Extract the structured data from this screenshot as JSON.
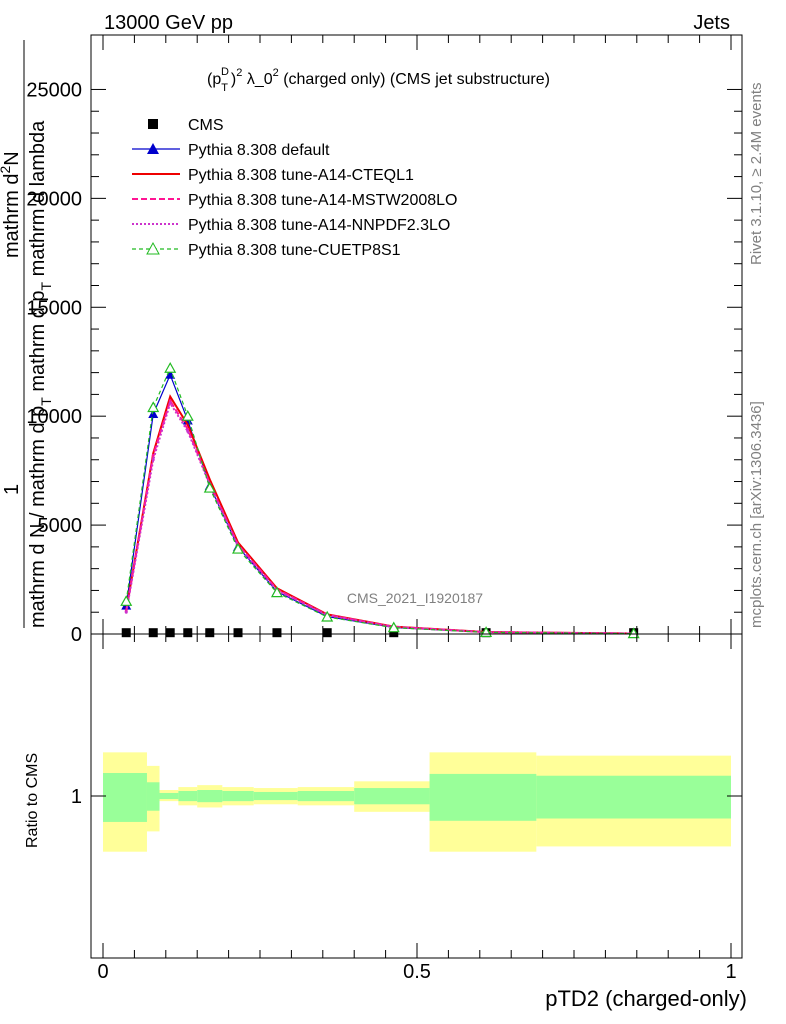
{
  "header": {
    "energy_label": "13000 GeV pp",
    "category_label": "Jets"
  },
  "side_labels": {
    "rivet": "Rivet 3.1.10, ≥ 2.4M events",
    "source": "mcplots.cern.ch [arXiv:1306.3436]"
  },
  "watermark": "CMS_2021_I1920187",
  "chart_data": [
    {
      "type": "line",
      "title": "(p_T^D)^2 λ_0^2 (charged only) (CMS jet substructure)",
      "title_parts": {
        "base1": "(p",
        "sub": "T",
        "sup_d": "D",
        "sup2": "2",
        "mid": " λ_0",
        "sup3": "2",
        "tail": " (charged only) (CMS jet substructure)"
      },
      "ylabel": "1 / mathrm dN / mathrm d p_T mathrm d p_T mathrm d lambda mathrm d^2N",
      "ylabel_lines": {
        "numerator": "1",
        "denominator": "mathrm d N / mathrm d p_T mathrm d p_T mathrm d lambda",
        "den_a": "mathrm d N / mathrm d p",
        "den_sub1": "T",
        "den_b": " mathrm d p",
        "den_sub2": "T",
        "den_c": " mathrm d lambda",
        "num2": "mathrm d",
        "num2_sup": "2",
        "num2_b": "N",
        "top": "mathrm d p_T mathrm d lambda"
      },
      "xlim": [
        0,
        1
      ],
      "ylim": [
        0,
        27500
      ],
      "yticks": [
        0,
        5000,
        10000,
        15000,
        20000,
        25000
      ],
      "ytick_labels": [
        "0",
        "5000",
        "10000",
        "15000",
        "20000",
        "25000"
      ],
      "x": [
        0.037,
        0.08,
        0.107,
        0.135,
        0.17,
        0.215,
        0.277,
        0.357,
        0.463,
        0.61,
        0.845
      ],
      "series": [
        {
          "name": "CMS",
          "color": "#000000",
          "style": "data",
          "values": [
            60,
            60,
            60,
            60,
            60,
            60,
            60,
            60,
            60,
            60,
            60
          ]
        },
        {
          "name": "Pythia 8.308 default",
          "color": "#0000cc",
          "style": "solid-triangle",
          "values": [
            1300,
            10100,
            11900,
            9800,
            6800,
            4000,
            1950,
            800,
            300,
            80,
            20
          ]
        },
        {
          "name": "Pythia 8.308 tune-A14-CTEQL1",
          "color": "#ee0000",
          "style": "solid",
          "values": [
            1100,
            8300,
            10900,
            9600,
            7100,
            4200,
            2100,
            900,
            340,
            90,
            25
          ]
        },
        {
          "name": "Pythia 8.308 tune-A14-MSTW2008LO",
          "color": "#ff1493",
          "style": "dashed",
          "values": [
            1050,
            8200,
            10700,
            9400,
            6900,
            4100,
            2050,
            880,
            330,
            85,
            22
          ]
        },
        {
          "name": "Pythia 8.308 tune-A14-NNPDF2.3LO",
          "color": "#cc33cc",
          "style": "dotted",
          "values": [
            1000,
            8000,
            10600,
            9300,
            6850,
            4050,
            2000,
            870,
            320,
            82,
            21
          ]
        },
        {
          "name": "Pythia 8.308 tune-CUETP8S1",
          "color": "#22bb22",
          "style": "dashed-open-triangle",
          "values": [
            1500,
            10400,
            12200,
            10000,
            6700,
            3900,
            1900,
            780,
            290,
            75,
            18
          ]
        }
      ]
    },
    {
      "type": "area",
      "ylabel": "Ratio to CMS",
      "xlabel": "pTD2 (charged-only)",
      "xlim": [
        0,
        1
      ],
      "xticks": [
        0,
        0.5,
        1
      ],
      "xtick_labels": [
        "0",
        "0.5",
        "1"
      ],
      "ytick_labels": [
        "1"
      ],
      "bins": [
        [
          0,
          0.07
        ],
        [
          0.07,
          0.09
        ],
        [
          0.09,
          0.12
        ],
        [
          0.12,
          0.15
        ],
        [
          0.15,
          0.19
        ],
        [
          0.19,
          0.24
        ],
        [
          0.24,
          0.31
        ],
        [
          0.31,
          0.4
        ],
        [
          0.4,
          0.52
        ],
        [
          0.52,
          0.69
        ],
        [
          0.69,
          1.0
        ]
      ],
      "band_inner": {
        "name": "stat",
        "color": "#99ff99",
        "lo": [
          0.88,
          0.93,
          0.985,
          0.975,
          0.97,
          0.975,
          0.98,
          0.975,
          0.96,
          0.885,
          0.895
        ],
        "hi": [
          1.12,
          1.07,
          1.015,
          1.025,
          1.03,
          1.025,
          1.02,
          1.025,
          1.04,
          1.115,
          1.105
        ]
      },
      "band_outer": {
        "name": "total",
        "color": "#ffff99",
        "lo": [
          0.76,
          0.84,
          0.975,
          0.955,
          0.945,
          0.955,
          0.96,
          0.955,
          0.925,
          0.76,
          0.78
        ],
        "hi": [
          1.24,
          1.16,
          1.03,
          1.045,
          1.055,
          1.045,
          1.04,
          1.045,
          1.075,
          1.24,
          1.22
        ]
      }
    }
  ]
}
